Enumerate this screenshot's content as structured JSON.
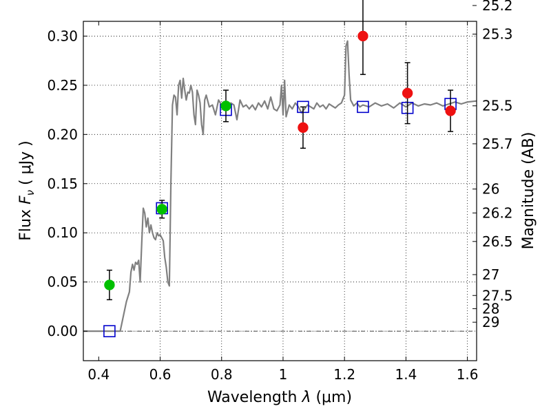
{
  "chart_data": {
    "type": "scatter",
    "xlabel": "Wavelength  λ (μm)",
    "ylabel": "Flux  F_ν  ( μJy )",
    "ylabel_parts": {
      "prefix": "Flux  ",
      "symbol": "F",
      "subscript": "ν",
      "unit": "  ( μJy )"
    },
    "xlabel_parts": {
      "prefix": "Wavelength  ",
      "symbol": "λ",
      "unit": " (μm)"
    },
    "y2label": "Magnitude (AB)",
    "xlim": [
      0.35,
      1.63
    ],
    "ylim": [
      -0.03,
      0.315
    ],
    "xticks": [
      0.4,
      0.6,
      0.8,
      1.0,
      1.2,
      1.4,
      1.6
    ],
    "xtick_labels": [
      "0.4",
      "0.6",
      "0.8",
      "1",
      "1.2",
      "1.4",
      "1.6"
    ],
    "yticks": [
      0.0,
      0.05,
      0.1,
      0.15,
      0.2,
      0.25,
      0.3
    ],
    "ytick_labels": [
      "0.00",
      "0.05",
      "0.10",
      "0.15",
      "0.20",
      "0.25",
      "0.30"
    ],
    "magnitude_ticks": [
      {
        "mag": "25.2",
        "flux": 0.3311
      },
      {
        "mag": "25.3",
        "flux": 0.302
      },
      {
        "mag": "25.5",
        "flux": 0.2291
      },
      {
        "mag": "25.7",
        "flux": 0.1905
      },
      {
        "mag": "26",
        "flux": 0.1445
      },
      {
        "mag": "26.2",
        "flux": 0.1202
      },
      {
        "mag": "26.5",
        "flux": 0.0912
      },
      {
        "mag": "27",
        "flux": 0.0575
      },
      {
        "mag": "27.5",
        "flux": 0.0363
      },
      {
        "mag": "28",
        "flux": 0.0229
      },
      {
        "mag": "29",
        "flux": 0.0091
      }
    ],
    "grid": true,
    "zero_line": true,
    "colors": {
      "model": "#808080",
      "green": "#00c000",
      "red": "#ee1111",
      "box": "#0000cc",
      "grid": "#000000"
    },
    "model_spectrum": {
      "x": [
        0.35,
        0.47,
        0.48,
        0.49,
        0.5,
        0.505,
        0.51,
        0.515,
        0.52,
        0.525,
        0.53,
        0.535,
        0.54,
        0.545,
        0.55,
        0.555,
        0.56,
        0.565,
        0.57,
        0.575,
        0.58,
        0.585,
        0.59,
        0.595,
        0.6,
        0.605,
        0.61,
        0.615,
        0.62,
        0.625,
        0.63,
        0.635,
        0.64,
        0.645,
        0.65,
        0.655,
        0.66,
        0.665,
        0.67,
        0.675,
        0.68,
        0.685,
        0.69,
        0.695,
        0.7,
        0.705,
        0.71,
        0.715,
        0.72,
        0.725,
        0.73,
        0.735,
        0.74,
        0.745,
        0.75,
        0.76,
        0.77,
        0.78,
        0.79,
        0.8,
        0.81,
        0.82,
        0.83,
        0.84,
        0.85,
        0.86,
        0.87,
        0.88,
        0.89,
        0.9,
        0.91,
        0.92,
        0.93,
        0.94,
        0.95,
        0.96,
        0.97,
        0.98,
        0.99,
        0.995,
        1.0,
        1.005,
        1.01,
        1.02,
        1.03,
        1.04,
        1.05,
        1.06,
        1.07,
        1.08,
        1.09,
        1.1,
        1.11,
        1.12,
        1.13,
        1.14,
        1.15,
        1.16,
        1.17,
        1.18,
        1.19,
        1.2,
        1.205,
        1.21,
        1.215,
        1.22,
        1.23,
        1.24,
        1.25,
        1.26,
        1.28,
        1.3,
        1.32,
        1.34,
        1.36,
        1.38,
        1.4,
        1.42,
        1.44,
        1.46,
        1.48,
        1.5,
        1.52,
        1.54,
        1.56,
        1.58,
        1.6,
        1.63
      ],
      "y": [
        0.0,
        0.0,
        0.015,
        0.03,
        0.04,
        0.06,
        0.068,
        0.062,
        0.07,
        0.068,
        0.072,
        0.05,
        0.09,
        0.125,
        0.12,
        0.106,
        0.115,
        0.1,
        0.108,
        0.1,
        0.095,
        0.093,
        0.1,
        0.097,
        0.098,
        0.095,
        0.092,
        0.075,
        0.065,
        0.05,
        0.046,
        0.15,
        0.23,
        0.24,
        0.238,
        0.22,
        0.25,
        0.255,
        0.237,
        0.257,
        0.245,
        0.235,
        0.243,
        0.242,
        0.25,
        0.243,
        0.22,
        0.21,
        0.245,
        0.24,
        0.232,
        0.21,
        0.2,
        0.235,
        0.24,
        0.228,
        0.23,
        0.22,
        0.235,
        0.23,
        0.228,
        0.225,
        0.232,
        0.23,
        0.215,
        0.235,
        0.228,
        0.23,
        0.226,
        0.23,
        0.225,
        0.232,
        0.228,
        0.234,
        0.226,
        0.238,
        0.226,
        0.224,
        0.23,
        0.25,
        0.22,
        0.255,
        0.218,
        0.23,
        0.226,
        0.232,
        0.228,
        0.222,
        0.226,
        0.23,
        0.228,
        0.226,
        0.232,
        0.228,
        0.23,
        0.226,
        0.231,
        0.229,
        0.227,
        0.23,
        0.232,
        0.24,
        0.29,
        0.295,
        0.26,
        0.235,
        0.229,
        0.232,
        0.228,
        0.23,
        0.228,
        0.232,
        0.229,
        0.231,
        0.227,
        0.232,
        0.228,
        0.232,
        0.229,
        0.231,
        0.23,
        0.232,
        0.229,
        0.231,
        0.233,
        0.231,
        0.233,
        0.234
      ]
    },
    "green_points": [
      {
        "x": 0.435,
        "y": 0.047,
        "err": 0.015
      },
      {
        "x": 0.606,
        "y": 0.124,
        "err": 0.009
      },
      {
        "x": 0.814,
        "y": 0.229,
        "err": 0.016
      }
    ],
    "red_points": [
      {
        "x": 1.065,
        "y": 0.207,
        "err": 0.021
      },
      {
        "x": 1.26,
        "y": 0.3,
        "err": 0.039
      },
      {
        "x": 1.405,
        "y": 0.242,
        "err": 0.031
      },
      {
        "x": 1.545,
        "y": 0.224,
        "err": 0.021
      }
    ],
    "model_boxes": [
      {
        "x": 0.435,
        "y": 0.0
      },
      {
        "x": 0.606,
        "y": 0.125
      },
      {
        "x": 0.814,
        "y": 0.225
      },
      {
        "x": 1.065,
        "y": 0.228
      },
      {
        "x": 1.26,
        "y": 0.228
      },
      {
        "x": 1.405,
        "y": 0.227
      },
      {
        "x": 1.545,
        "y": 0.231
      }
    ]
  }
}
